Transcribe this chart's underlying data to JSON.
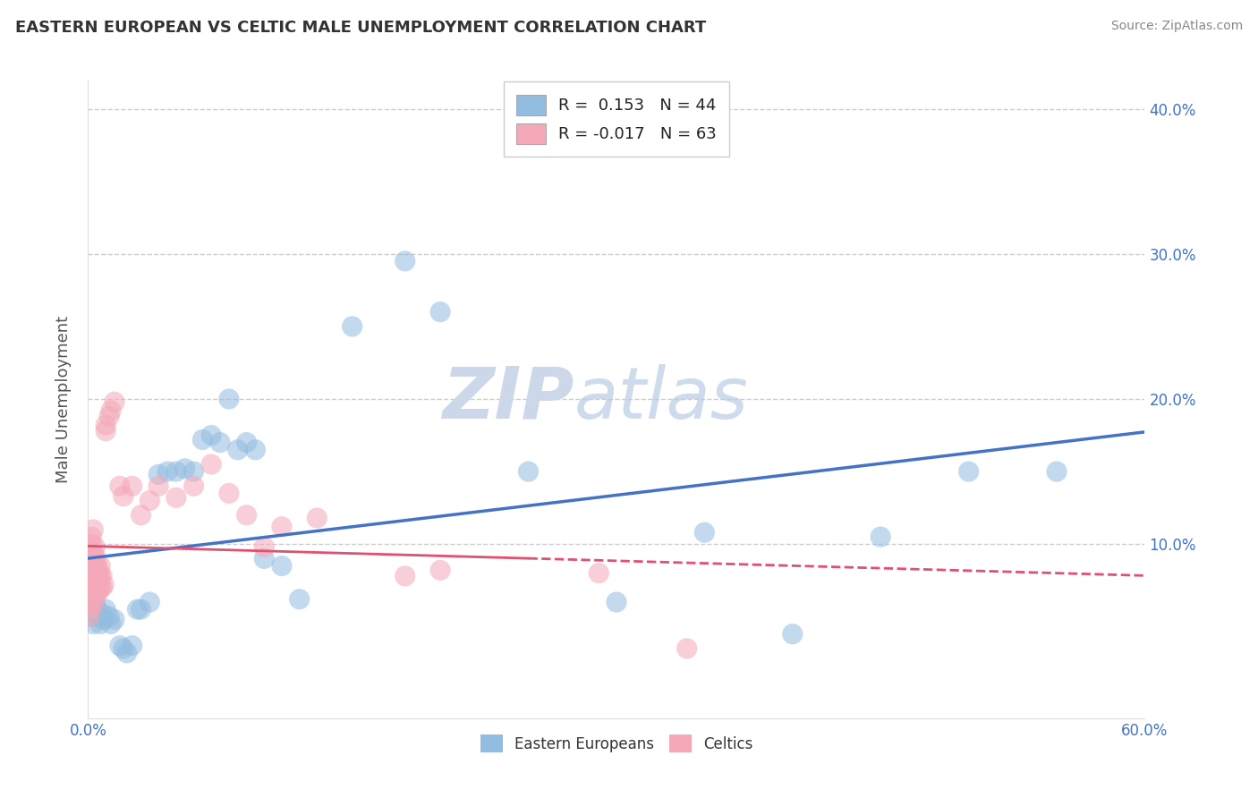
{
  "title": "EASTERN EUROPEAN VS CELTIC MALE UNEMPLOYMENT CORRELATION CHART",
  "source": "Source: ZipAtlas.com",
  "ylabel": "Male Unemployment",
  "xlim": [
    0.0,
    0.6
  ],
  "ylim": [
    -0.02,
    0.42
  ],
  "ylim_data": [
    0.0,
    0.42
  ],
  "grid_yticks": [
    0.1,
    0.2,
    0.3,
    0.4
  ],
  "right_ytick_labels": [
    "10.0%",
    "20.0%",
    "30.0%",
    "40.0%"
  ],
  "grid_color": "#cccccc",
  "background_color": "#ffffff",
  "blue_color": "#92bce0",
  "pink_color": "#f4a8b8",
  "blue_line_color": "#4472c4",
  "pink_line_color": "#e05070",
  "watermark_zip": "ZIP",
  "watermark_atlas": "atlas",
  "ee_x": [
    0.002,
    0.003,
    0.004,
    0.005,
    0.006,
    0.007,
    0.008,
    0.009,
    0.01,
    0.012,
    0.013,
    0.015,
    0.018,
    0.02,
    0.022,
    0.025,
    0.028,
    0.03,
    0.035,
    0.04,
    0.045,
    0.05,
    0.055,
    0.06,
    0.065,
    0.07,
    0.075,
    0.08,
    0.085,
    0.09,
    0.095,
    0.1,
    0.11,
    0.12,
    0.15,
    0.18,
    0.2,
    0.25,
    0.3,
    0.35,
    0.4,
    0.45,
    0.5,
    0.55
  ],
  "ee_y": [
    0.05,
    0.045,
    0.06,
    0.055,
    0.05,
    0.045,
    0.052,
    0.048,
    0.055,
    0.05,
    0.045,
    0.048,
    0.03,
    0.028,
    0.025,
    0.03,
    0.055,
    0.055,
    0.06,
    0.148,
    0.15,
    0.15,
    0.152,
    0.15,
    0.172,
    0.175,
    0.17,
    0.2,
    0.165,
    0.17,
    0.165,
    0.09,
    0.085,
    0.062,
    0.25,
    0.295,
    0.26,
    0.15,
    0.06,
    0.108,
    0.038,
    0.105,
    0.15,
    0.15
  ],
  "celtic_x": [
    0.001,
    0.001,
    0.001,
    0.002,
    0.002,
    0.002,
    0.002,
    0.002,
    0.002,
    0.002,
    0.002,
    0.002,
    0.003,
    0.003,
    0.003,
    0.003,
    0.003,
    0.003,
    0.003,
    0.003,
    0.003,
    0.004,
    0.004,
    0.004,
    0.004,
    0.004,
    0.005,
    0.005,
    0.005,
    0.005,
    0.005,
    0.006,
    0.006,
    0.006,
    0.007,
    0.007,
    0.007,
    0.008,
    0.008,
    0.009,
    0.01,
    0.01,
    0.012,
    0.013,
    0.015,
    0.018,
    0.02,
    0.025,
    0.03,
    0.035,
    0.04,
    0.05,
    0.06,
    0.07,
    0.08,
    0.09,
    0.1,
    0.11,
    0.13,
    0.18,
    0.2,
    0.29,
    0.34
  ],
  "celtic_y": [
    0.05,
    0.055,
    0.065,
    0.06,
    0.07,
    0.075,
    0.08,
    0.085,
    0.09,
    0.095,
    0.1,
    0.105,
    0.058,
    0.062,
    0.068,
    0.072,
    0.078,
    0.082,
    0.088,
    0.093,
    0.11,
    0.075,
    0.08,
    0.085,
    0.092,
    0.098,
    0.065,
    0.07,
    0.075,
    0.08,
    0.087,
    0.068,
    0.075,
    0.082,
    0.07,
    0.078,
    0.085,
    0.07,
    0.078,
    0.072,
    0.178,
    0.182,
    0.188,
    0.192,
    0.198,
    0.14,
    0.133,
    0.14,
    0.12,
    0.13,
    0.14,
    0.132,
    0.14,
    0.155,
    0.135,
    0.12,
    0.098,
    0.112,
    0.118,
    0.078,
    0.082,
    0.08,
    0.028
  ]
}
